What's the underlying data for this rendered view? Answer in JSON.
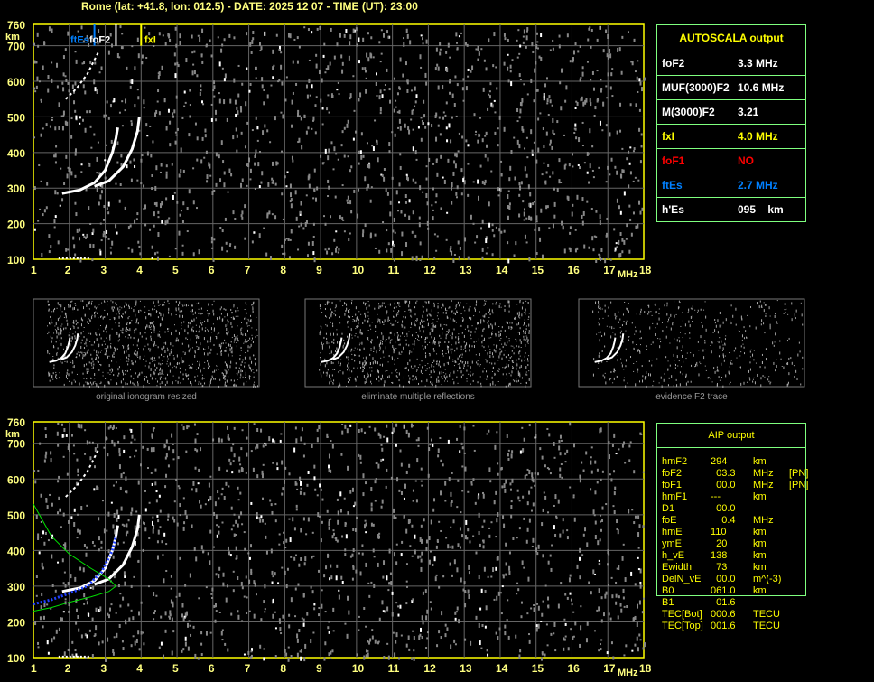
{
  "title": "Rome (lat: +41.8, lon: 012.5) - DATE: 2025 12 07 - TIME (UT): 23:00",
  "chart_data": {
    "type": "scatter",
    "xlabel": "MHz",
    "ylabel": "km",
    "xlim": [
      1,
      18
    ],
    "ylim": [
      100,
      760
    ],
    "x_ticks": [
      "1",
      "2",
      "3",
      "4",
      "5",
      "6",
      "7",
      "8",
      "9",
      "10",
      "11",
      "12",
      "13",
      "14",
      "15",
      "16",
      "17",
      "18"
    ],
    "y_ticks": [
      "100",
      "200",
      "300",
      "400",
      "500",
      "600",
      "700",
      "760"
    ],
    "grid": true,
    "markers": [
      {
        "label": "ftEs",
        "freq": 2.7,
        "color": "#0080ff"
      },
      {
        "label": "foF2",
        "freq": 3.3,
        "color": "#ffffff"
      },
      {
        "label": "fxI",
        "freq": 4.0,
        "color": "#ffff00"
      }
    ],
    "traces": {
      "o_trace": [
        [
          1.8,
          285
        ],
        [
          2.3,
          295
        ],
        [
          2.7,
          315
        ],
        [
          3.0,
          350
        ],
        [
          3.2,
          400
        ],
        [
          3.3,
          440
        ],
        [
          3.35,
          470
        ]
      ],
      "x_trace": [
        [
          2.7,
          305
        ],
        [
          3.1,
          320
        ],
        [
          3.5,
          360
        ],
        [
          3.75,
          410
        ],
        [
          3.9,
          460
        ],
        [
          3.95,
          500
        ]
      ],
      "multiple": [
        [
          1.9,
          550
        ],
        [
          2.2,
          580
        ],
        [
          2.5,
          620
        ],
        [
          2.8,
          680
        ]
      ]
    },
    "profile": {
      "upper": [
        [
          1.0,
          530
        ],
        [
          1.5,
          440
        ],
        [
          2.0,
          390
        ],
        [
          2.6,
          350
        ],
        [
          3.1,
          320
        ],
        [
          3.3,
          300
        ]
      ],
      "lower": [
        [
          1.0,
          230
        ],
        [
          1.5,
          240
        ],
        [
          2.0,
          255
        ],
        [
          2.6,
          270
        ],
        [
          3.1,
          285
        ],
        [
          3.3,
          300
        ]
      ],
      "fitted": [
        [
          1.0,
          250
        ],
        [
          1.5,
          262
        ],
        [
          2.0,
          280
        ],
        [
          2.5,
          300
        ],
        [
          2.9,
          340
        ],
        [
          3.2,
          400
        ],
        [
          3.3,
          440
        ]
      ]
    },
    "thumbnail_captions": [
      "original ionogram resized",
      "eliminate multiple reflections",
      "evidence F2 trace"
    ]
  },
  "autoscala": {
    "title": "AUTOSCALA output",
    "rows": [
      {
        "k": "foF2",
        "v": "3.3 MHz",
        "color": "#ffffff"
      },
      {
        "k": "MUF(3000)F2",
        "v": "10.6 MHz",
        "color": "#ffffff"
      },
      {
        "k": "M(3000)F2",
        "v": "3.21",
        "color": "#ffffff"
      },
      {
        "k": "fxI",
        "v": "4.0 MHz",
        "color": "#ffff00"
      },
      {
        "k": "foF1",
        "v": "NO",
        "color": "#ff0000"
      },
      {
        "k": "ftEs",
        "v": "2.7 MHz",
        "color": "#0080ff"
      },
      {
        "k": "h'Es",
        "v": "095    km",
        "color": "#ffffff"
      }
    ]
  },
  "aip": {
    "title": "AIP output",
    "rows": [
      [
        "hmF2",
        "294",
        "km",
        ""
      ],
      [
        "foF2",
        "  03.3",
        "MHz",
        "[PN]"
      ],
      [
        "foF1",
        "  00.0",
        "MHz",
        "[PN]"
      ],
      [
        "hmF1",
        "---",
        "km",
        ""
      ],
      [
        "D1",
        "  00.0",
        "",
        ""
      ],
      [
        "foE",
        "    0.4",
        "MHz",
        ""
      ],
      [
        "hmE",
        "110",
        "km",
        ""
      ],
      [
        "ymE",
        "  20",
        "km",
        ""
      ],
      [
        "h_vE",
        "138",
        "km",
        ""
      ],
      [
        "Ewidth",
        "  73",
        "km",
        ""
      ],
      [
        "DelN_vE",
        "  00.0",
        "m^(-3)",
        ""
      ],
      [
        "B0",
        "061.0",
        "km",
        ""
      ],
      [
        "B1",
        "  01.6",
        "",
        ""
      ],
      [
        "TEC[Bot]",
        "000.6",
        "TECU",
        ""
      ],
      [
        "TEC[Top]",
        "001.6",
        "TECU",
        ""
      ]
    ]
  }
}
